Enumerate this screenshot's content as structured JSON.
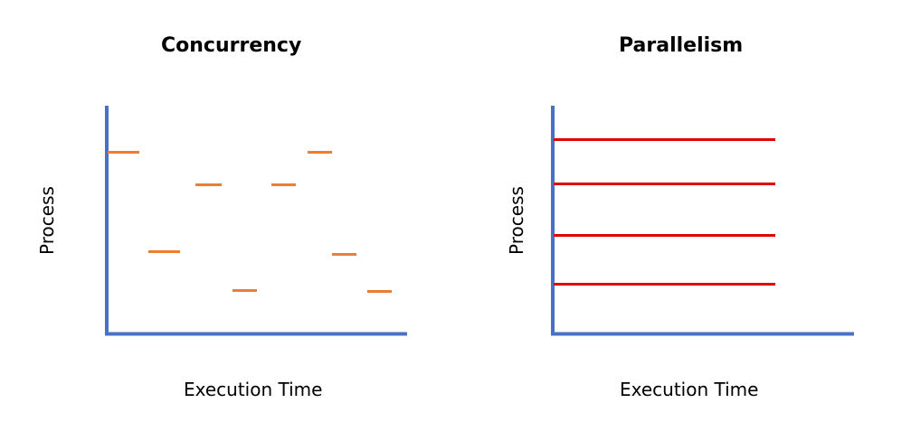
{
  "concurrency": {
    "title": "Concurrency",
    "xlabel": "Execution Time",
    "ylabel": "Process"
  },
  "parallelism": {
    "title": "Parallelism",
    "xlabel": "Execution Time",
    "ylabel": "Process"
  },
  "colors": {
    "axis": "#4472C4",
    "concurrency_segment": "#ED7D31",
    "parallelism_line": "#E00000"
  }
}
